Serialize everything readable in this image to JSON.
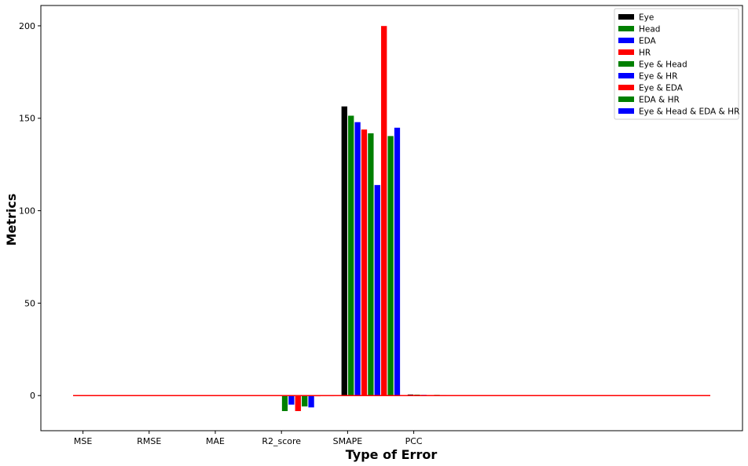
{
  "chart_data": {
    "type": "bar",
    "xlabel": "Type of Error",
    "ylabel": "Metrics",
    "categories": [
      "MSE",
      "RMSE",
      "MAE",
      "R2_score",
      "SMAPE",
      "PCC"
    ],
    "ylim": [
      -19,
      211
    ],
    "yticks": [
      0,
      50,
      100,
      150,
      200
    ],
    "legend_position": "top-right",
    "series": [
      {
        "name": "Eye",
        "color": "#000000",
        "values": [
          0.2,
          0.3,
          0.2,
          -0.3,
          156.5,
          0.7
        ]
      },
      {
        "name": "Head",
        "color": "#008000",
        "values": [
          0.2,
          0.3,
          0.2,
          -8.5,
          151.5,
          0.6
        ]
      },
      {
        "name": "EDA",
        "color": "#0000ff",
        "values": [
          0.2,
          0.3,
          0.2,
          -5.0,
          148.0,
          0.5
        ]
      },
      {
        "name": "HR",
        "color": "#ff0000",
        "values": [
          0.2,
          0.3,
          0.2,
          -8.5,
          144.0,
          0.4
        ]
      },
      {
        "name": "Eye & Head",
        "color": "#008000",
        "values": [
          0.2,
          0.3,
          0.2,
          -6.0,
          142.0,
          0.5
        ]
      },
      {
        "name": "Eye & HR",
        "color": "#0000ff",
        "values": [
          0.2,
          0.3,
          0.2,
          -6.5,
          114.0,
          0.4
        ]
      },
      {
        "name": "Eye & EDA",
        "color": "#ff0000",
        "values": [
          0.2,
          0.3,
          0.2,
          -0.5,
          200.0,
          0.3
        ]
      },
      {
        "name": "EDA & HR",
        "color": "#008000",
        "values": [
          0.2,
          0.3,
          0.2,
          -0.4,
          140.5,
          0.3
        ]
      },
      {
        "name": "Eye & Head & EDA & HR",
        "color": "#0000ff",
        "values": [
          0.2,
          0.3,
          0.2,
          -0.4,
          145.0,
          0.3
        ]
      }
    ]
  }
}
